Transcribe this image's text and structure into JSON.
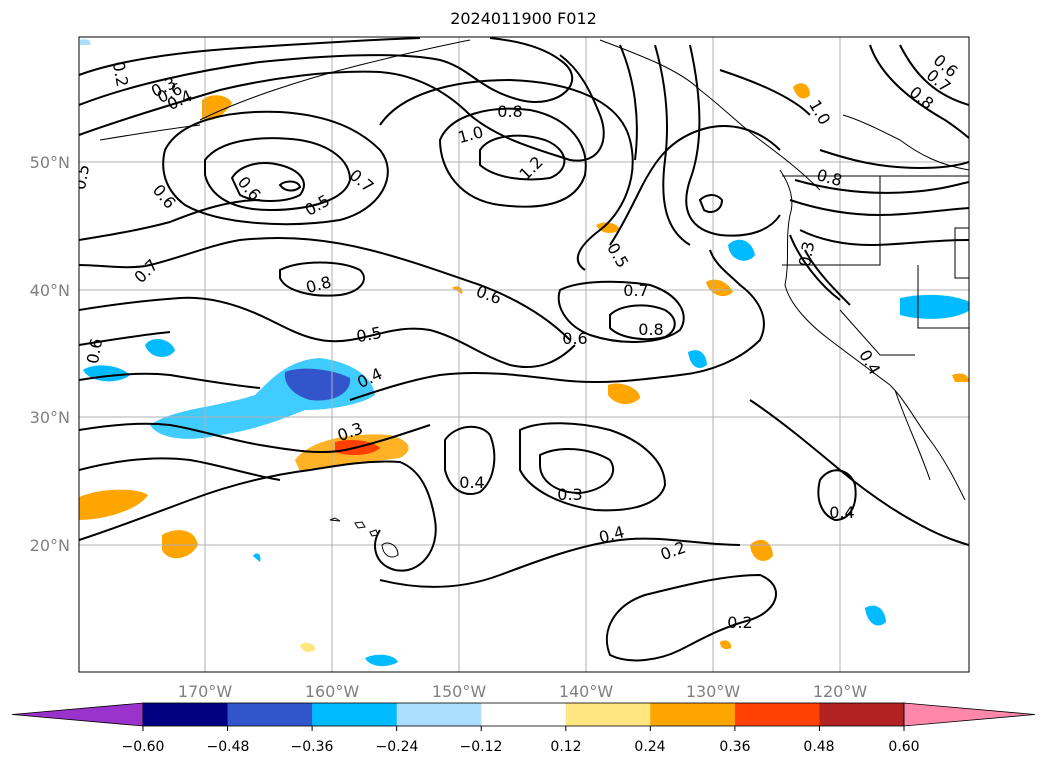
{
  "title": "2024011900 F012",
  "map": {
    "lat_labels": [
      "50°N",
      "40°N",
      "30°N",
      "20°N"
    ],
    "lon_labels": [
      "170°W",
      "160°W",
      "150°W",
      "140°W",
      "130°W",
      "120°W"
    ],
    "contour_labels": [
      "0.2",
      "0.3",
      "0.4",
      "0.5",
      "0.6",
      "0.8",
      "1.0",
      "1.2",
      "0.6",
      "0.5",
      "0.7",
      "0.6",
      "0.7",
      "0.8",
      "0.6",
      "0.5",
      "0.7",
      "0.8",
      "0.6",
      "0.5",
      "0.4",
      "0.3",
      "0.6",
      "0.4",
      "0.3",
      "0.4",
      "0.2",
      "0.2",
      "0.3",
      "0.4",
      "0.4",
      "1.0",
      "0.8",
      "0.6",
      "0.7",
      "0.8"
    ],
    "grid": true,
    "coastline_color": "#000000"
  },
  "colorbar": {
    "tick_labels": [
      "−0.60",
      "−0.48",
      "−0.36",
      "−0.24",
      "−0.12",
      "0.12",
      "0.24",
      "0.36",
      "0.48",
      "0.60"
    ],
    "colors": [
      "#9933cc",
      "#000080",
      "#3355cc",
      "#00bbff",
      "#aaddff",
      "#ffffff",
      "#ffe680",
      "#ffa500",
      "#ff4000",
      "#b22222",
      "#ff88aa"
    ]
  }
}
